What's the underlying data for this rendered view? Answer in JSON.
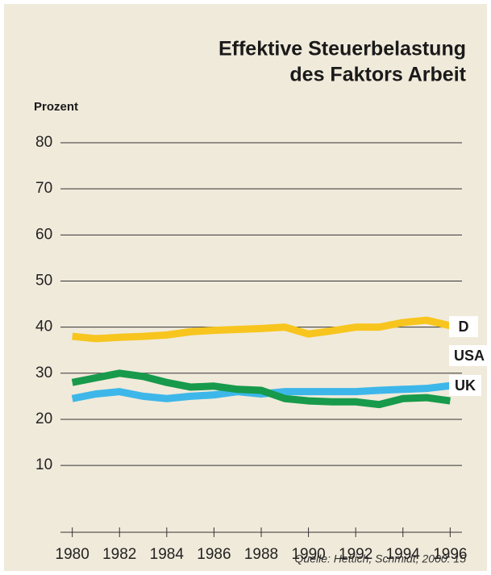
{
  "chart_data": {
    "type": "line",
    "title": [
      "Effektive Steuerbelastung",
      "des Faktors Arbeit"
    ],
    "y_label": "Prozent",
    "source": "Quelle: Hettich, Schmidt, 2000: 15",
    "x": [
      1980,
      1981,
      1982,
      1983,
      1984,
      1985,
      1986,
      1987,
      1988,
      1989,
      1990,
      1991,
      1992,
      1993,
      1994,
      1995,
      1996
    ],
    "series": [
      {
        "name": "D",
        "color": "#f7c51e",
        "values": [
          38,
          37.5,
          37.8,
          38,
          38.3,
          39,
          39.3,
          39.5,
          39.7,
          40,
          38.5,
          39.2,
          40,
          40,
          41,
          41.5,
          40.3
        ]
      },
      {
        "name": "USA",
        "color": "#3db7e9",
        "values": [
          24.5,
          25.5,
          26,
          25,
          24.5,
          25,
          25.3,
          26,
          25.5,
          26,
          26,
          26,
          26,
          26.3,
          26.5,
          26.7,
          27.3
        ]
      },
      {
        "name": "UK",
        "color": "#179a4b",
        "values": [
          28,
          29,
          30,
          29.3,
          28,
          27,
          27.2,
          26.5,
          26.3,
          24.5,
          24,
          23.8,
          23.8,
          23.2,
          24.5,
          24.7,
          24
        ]
      }
    ],
    "xlim": [
      1979.5,
      1996.5
    ],
    "xticks": [
      1980,
      1982,
      1984,
      1986,
      1988,
      1990,
      1992,
      1994,
      1996
    ],
    "ylim": [
      -4.5,
      80
    ],
    "yticks": [
      10,
      20,
      30,
      40,
      50,
      60,
      70,
      80
    ],
    "grid": true
  }
}
